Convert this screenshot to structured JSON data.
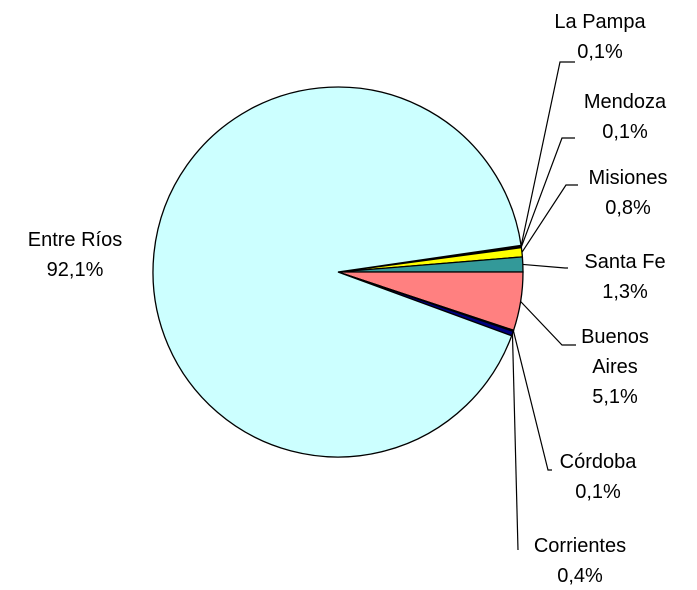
{
  "chart_data": {
    "type": "pie",
    "categories": [
      "La Pampa",
      "Mendoza",
      "Misiones",
      "Santa Fe",
      "Buenos Aires",
      "Córdoba",
      "Corrientes",
      "Entre Ríos"
    ],
    "values": [
      0.1,
      0.1,
      0.8,
      1.3,
      5.1,
      0.1,
      0.4,
      92.1
    ],
    "value_labels": [
      "0,1%",
      "0,1%",
      "0,8%",
      "1,3%",
      "5,1%",
      "0,1%",
      "0,4%",
      "92,1%"
    ],
    "colors": [
      "#993366",
      "#000000",
      "#ffff00",
      "#339999",
      "#ff8080",
      "#0066cc",
      "#000080",
      "#ccffff"
    ]
  }
}
